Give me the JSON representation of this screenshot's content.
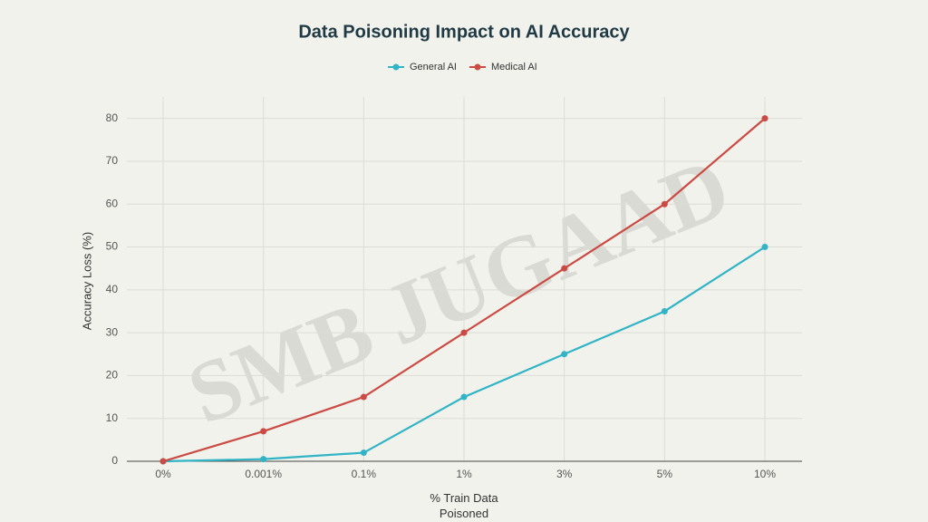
{
  "chart_data": {
    "type": "line",
    "title": "Data Poisoning Impact on AI Accuracy",
    "categories": [
      "0%",
      "0.001%",
      "0.1%",
      "1%",
      "3%",
      "5%",
      "10%"
    ],
    "series": [
      {
        "name": "General AI",
        "color": "#30b4c6",
        "values": [
          0,
          0.5,
          2,
          15,
          25,
          35,
          50
        ]
      },
      {
        "name": "Medical AI",
        "color": "#cc4a44",
        "values": [
          0,
          7,
          15,
          30,
          45,
          60,
          80
        ]
      }
    ],
    "xlabel": "% Train Data Poisoned",
    "ylabel": "Accuracy Loss (%)",
    "ylim": [
      0,
      85
    ],
    "yticks": [
      0,
      10,
      20,
      30,
      40,
      50,
      60,
      70,
      80
    ],
    "grid": true,
    "legend": "top",
    "watermark": "SMB JUGAAD"
  }
}
